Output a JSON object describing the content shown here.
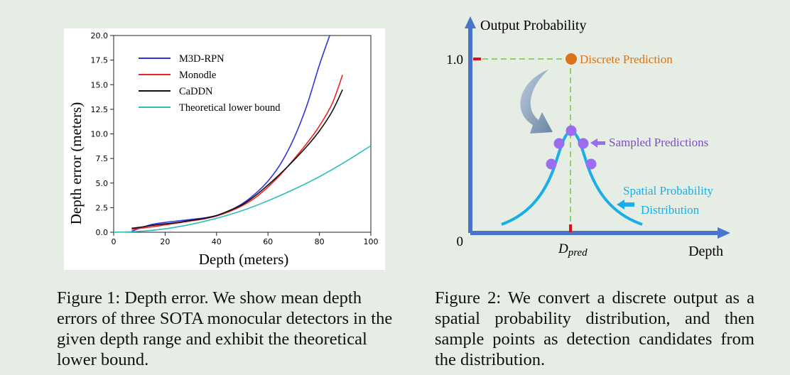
{
  "figure1": {
    "caption": "Figure 1: Depth error. We show mean depth errors of three SOTA monocular detectors in the given depth range and exhibit the theoretical lower bound.",
    "chart_data": {
      "type": "line",
      "xlabel": "Depth (meters)",
      "ylabel": "Depth error (meters)",
      "xlim": [
        0,
        100
      ],
      "ylim": [
        0,
        20
      ],
      "xticks": [
        "0",
        "20",
        "40",
        "60",
        "80",
        "100"
      ],
      "yticks": [
        "0.0",
        "2.5",
        "5.0",
        "7.5",
        "10.0",
        "12.5",
        "15.0",
        "17.5",
        "20.0"
      ],
      "legend_position": "top-left",
      "series": [
        {
          "name": "M3D-RPN",
          "color": "#3333dd",
          "x": [
            7,
            10,
            15,
            20,
            25,
            30,
            35,
            40,
            45,
            50,
            55,
            60,
            65,
            70,
            75,
            80,
            84
          ],
          "y": [
            0.1,
            0.4,
            0.8,
            1.0,
            1.15,
            1.3,
            1.45,
            1.7,
            2.2,
            2.9,
            3.9,
            5.2,
            7.0,
            9.5,
            12.8,
            17.0,
            20.0
          ]
        },
        {
          "name": "Monodle",
          "color": "#ee2222",
          "x": [
            7,
            10,
            15,
            20,
            25,
            30,
            35,
            40,
            45,
            50,
            55,
            60,
            65,
            70,
            75,
            80,
            85,
            89
          ],
          "y": [
            0.3,
            0.4,
            0.55,
            0.75,
            0.95,
            1.15,
            1.35,
            1.65,
            2.1,
            2.7,
            3.5,
            4.6,
            5.9,
            7.4,
            9.0,
            10.8,
            13.1,
            16.0
          ]
        },
        {
          "name": "CaDDN",
          "color": "#111111",
          "x": [
            7,
            10,
            15,
            20,
            25,
            30,
            35,
            40,
            45,
            50,
            55,
            60,
            65,
            70,
            75,
            80,
            85,
            89
          ],
          "y": [
            0.4,
            0.5,
            0.7,
            0.85,
            1.0,
            1.2,
            1.4,
            1.7,
            2.2,
            2.8,
            3.7,
            4.8,
            6.0,
            7.3,
            8.7,
            10.3,
            12.3,
            14.5
          ]
        },
        {
          "name": "Theoretical lower bound",
          "color": "#2bbfb8",
          "x": [
            0,
            10,
            20,
            30,
            40,
            50,
            60,
            70,
            80,
            90,
            100
          ],
          "y": [
            0.0,
            0.09,
            0.35,
            0.8,
            1.42,
            2.2,
            3.2,
            4.35,
            5.65,
            7.15,
            8.8
          ]
        }
      ]
    }
  },
  "figure2": {
    "caption": "Figure 2: We convert a discrete output as a spatial probability distribution, and then sample points as detection candidates from the distribution.",
    "y_axis_label": "Output Probability",
    "x_axis_label": "Depth",
    "y_tick_top": "1.0",
    "origin_label": "0",
    "d_pred_main": "D",
    "d_pred_sub": "pred",
    "discrete_label": "Discrete Prediction",
    "sampled_label": "Sampled Predictions",
    "spatial_label_line1": "Spatial Probability",
    "spatial_label_line2": "Distribution",
    "axis_color": "#4a74c9",
    "curve_color": "#1aaee8",
    "point_color": "#9b6cf0",
    "discrete_color": "#d8731a",
    "guide_color": "#8fd06a",
    "label_color_sampled": "#7a4fc4"
  }
}
